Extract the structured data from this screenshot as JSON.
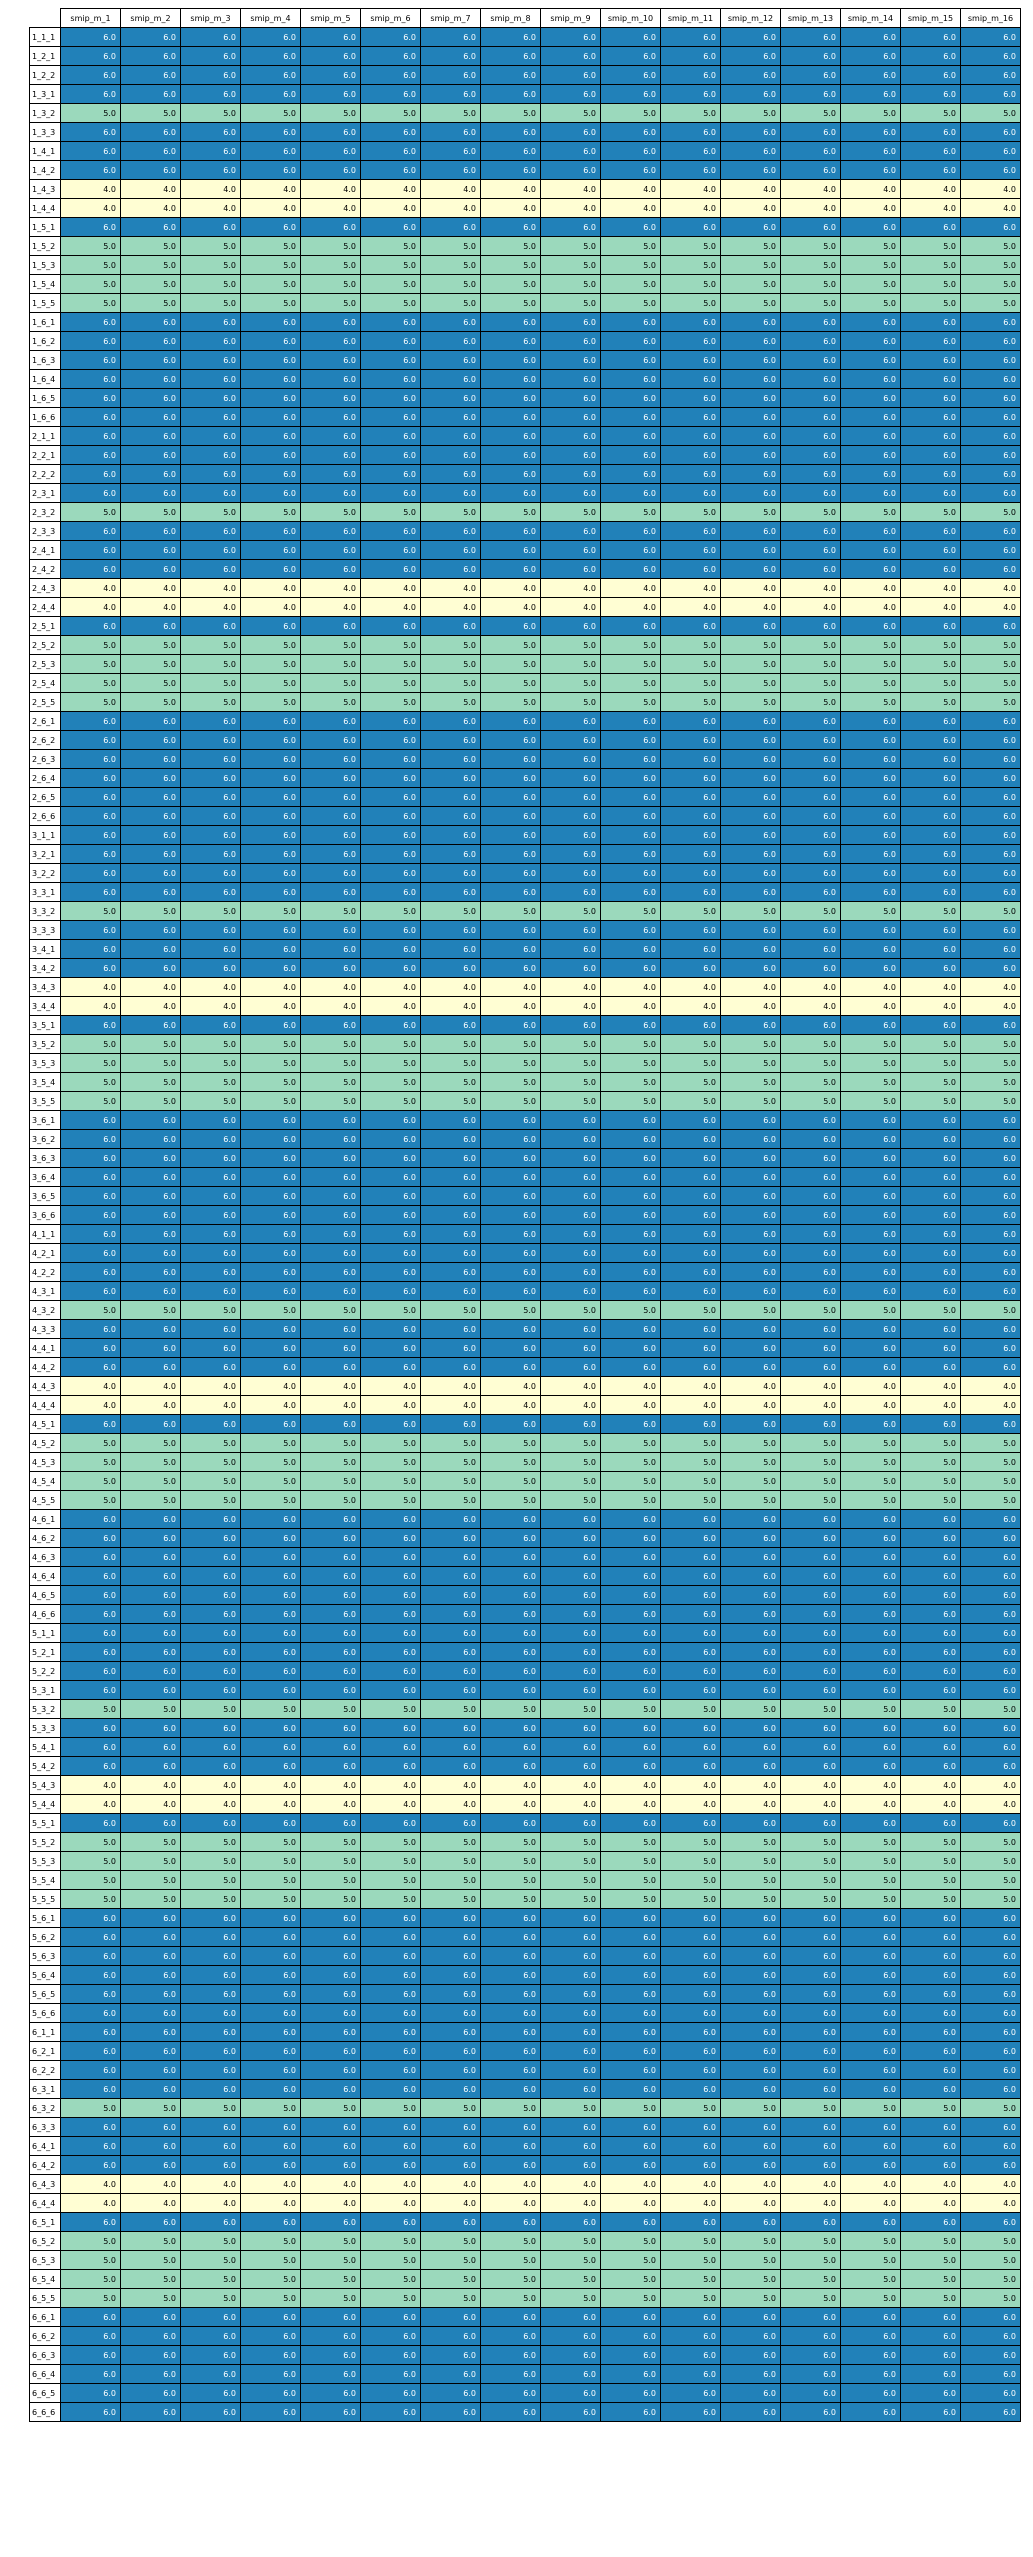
{
  "chart_data": {
    "type": "heatmap",
    "columns": [
      "smip_m_1",
      "smip_m_2",
      "smip_m_3",
      "smip_m_4",
      "smip_m_5",
      "smip_m_6",
      "smip_m_7",
      "smip_m_8",
      "smip_m_9",
      "smip_m_10",
      "smip_m_11",
      "smip_m_12",
      "smip_m_13",
      "smip_m_14",
      "smip_m_15",
      "smip_m_16"
    ],
    "rows": [
      {
        "label": "1_1_1",
        "value": "6.0"
      },
      {
        "label": "1_2_1",
        "value": "6.0"
      },
      {
        "label": "1_2_2",
        "value": "6.0"
      },
      {
        "label": "1_3_1",
        "value": "6.0"
      },
      {
        "label": "1_3_2",
        "value": "5.0"
      },
      {
        "label": "1_3_3",
        "value": "6.0"
      },
      {
        "label": "1_4_1",
        "value": "6.0"
      },
      {
        "label": "1_4_2",
        "value": "6.0"
      },
      {
        "label": "1_4_3",
        "value": "4.0"
      },
      {
        "label": "1_4_4",
        "value": "4.0"
      },
      {
        "label": "1_5_1",
        "value": "6.0"
      },
      {
        "label": "1_5_2",
        "value": "5.0"
      },
      {
        "label": "1_5_3",
        "value": "5.0"
      },
      {
        "label": "1_5_4",
        "value": "5.0"
      },
      {
        "label": "1_5_5",
        "value": "5.0"
      },
      {
        "label": "1_6_1",
        "value": "6.0"
      },
      {
        "label": "1_6_2",
        "value": "6.0"
      },
      {
        "label": "1_6_3",
        "value": "6.0"
      },
      {
        "label": "1_6_4",
        "value": "6.0"
      },
      {
        "label": "1_6_5",
        "value": "6.0"
      },
      {
        "label": "1_6_6",
        "value": "6.0"
      },
      {
        "label": "2_1_1",
        "value": "6.0"
      },
      {
        "label": "2_2_1",
        "value": "6.0"
      },
      {
        "label": "2_2_2",
        "value": "6.0"
      },
      {
        "label": "2_3_1",
        "value": "6.0"
      },
      {
        "label": "2_3_2",
        "value": "5.0"
      },
      {
        "label": "2_3_3",
        "value": "6.0"
      },
      {
        "label": "2_4_1",
        "value": "6.0"
      },
      {
        "label": "2_4_2",
        "value": "6.0"
      },
      {
        "label": "2_4_3",
        "value": "4.0"
      },
      {
        "label": "2_4_4",
        "value": "4.0"
      },
      {
        "label": "2_5_1",
        "value": "6.0"
      },
      {
        "label": "2_5_2",
        "value": "5.0"
      },
      {
        "label": "2_5_3",
        "value": "5.0"
      },
      {
        "label": "2_5_4",
        "value": "5.0"
      },
      {
        "label": "2_5_5",
        "value": "5.0"
      },
      {
        "label": "2_6_1",
        "value": "6.0"
      },
      {
        "label": "2_6_2",
        "value": "6.0"
      },
      {
        "label": "2_6_3",
        "value": "6.0"
      },
      {
        "label": "2_6_4",
        "value": "6.0"
      },
      {
        "label": "2_6_5",
        "value": "6.0"
      },
      {
        "label": "2_6_6",
        "value": "6.0"
      },
      {
        "label": "3_1_1",
        "value": "6.0"
      },
      {
        "label": "3_2_1",
        "value": "6.0"
      },
      {
        "label": "3_2_2",
        "value": "6.0"
      },
      {
        "label": "3_3_1",
        "value": "6.0"
      },
      {
        "label": "3_3_2",
        "value": "5.0"
      },
      {
        "label": "3_3_3",
        "value": "6.0"
      },
      {
        "label": "3_4_1",
        "value": "6.0"
      },
      {
        "label": "3_4_2",
        "value": "6.0"
      },
      {
        "label": "3_4_3",
        "value": "4.0"
      },
      {
        "label": "3_4_4",
        "value": "4.0"
      },
      {
        "label": "3_5_1",
        "value": "6.0"
      },
      {
        "label": "3_5_2",
        "value": "5.0"
      },
      {
        "label": "3_5_3",
        "value": "5.0"
      },
      {
        "label": "3_5_4",
        "value": "5.0"
      },
      {
        "label": "3_5_5",
        "value": "5.0"
      },
      {
        "label": "3_6_1",
        "value": "6.0"
      },
      {
        "label": "3_6_2",
        "value": "6.0"
      },
      {
        "label": "3_6_3",
        "value": "6.0"
      },
      {
        "label": "3_6_4",
        "value": "6.0"
      },
      {
        "label": "3_6_5",
        "value": "6.0"
      },
      {
        "label": "3_6_6",
        "value": "6.0"
      },
      {
        "label": "4_1_1",
        "value": "6.0"
      },
      {
        "label": "4_2_1",
        "value": "6.0"
      },
      {
        "label": "4_2_2",
        "value": "6.0"
      },
      {
        "label": "4_3_1",
        "value": "6.0"
      },
      {
        "label": "4_3_2",
        "value": "5.0"
      },
      {
        "label": "4_3_3",
        "value": "6.0"
      },
      {
        "label": "4_4_1",
        "value": "6.0"
      },
      {
        "label": "4_4_2",
        "value": "6.0"
      },
      {
        "label": "4_4_3",
        "value": "4.0"
      },
      {
        "label": "4_4_4",
        "value": "4.0"
      },
      {
        "label": "4_5_1",
        "value": "6.0"
      },
      {
        "label": "4_5_2",
        "value": "5.0"
      },
      {
        "label": "4_5_3",
        "value": "5.0"
      },
      {
        "label": "4_5_4",
        "value": "5.0"
      },
      {
        "label": "4_5_5",
        "value": "5.0"
      },
      {
        "label": "4_6_1",
        "value": "6.0"
      },
      {
        "label": "4_6_2",
        "value": "6.0"
      },
      {
        "label": "4_6_3",
        "value": "6.0"
      },
      {
        "label": "4_6_4",
        "value": "6.0"
      },
      {
        "label": "4_6_5",
        "value": "6.0"
      },
      {
        "label": "4_6_6",
        "value": "6.0"
      },
      {
        "label": "5_1_1",
        "value": "6.0"
      },
      {
        "label": "5_2_1",
        "value": "6.0"
      },
      {
        "label": "5_2_2",
        "value": "6.0"
      },
      {
        "label": "5_3_1",
        "value": "6.0"
      },
      {
        "label": "5_3_2",
        "value": "5.0"
      },
      {
        "label": "5_3_3",
        "value": "6.0"
      },
      {
        "label": "5_4_1",
        "value": "6.0"
      },
      {
        "label": "5_4_2",
        "value": "6.0"
      },
      {
        "label": "5_4_3",
        "value": "4.0"
      },
      {
        "label": "5_4_4",
        "value": "4.0"
      },
      {
        "label": "5_5_1",
        "value": "6.0"
      },
      {
        "label": "5_5_2",
        "value": "5.0"
      },
      {
        "label": "5_5_3",
        "value": "5.0"
      },
      {
        "label": "5_5_4",
        "value": "5.0"
      },
      {
        "label": "5_5_5",
        "value": "5.0"
      },
      {
        "label": "5_6_1",
        "value": "6.0"
      },
      {
        "label": "5_6_2",
        "value": "6.0"
      },
      {
        "label": "5_6_3",
        "value": "6.0"
      },
      {
        "label": "5_6_4",
        "value": "6.0"
      },
      {
        "label": "5_6_5",
        "value": "6.0"
      },
      {
        "label": "5_6_6",
        "value": "6.0"
      },
      {
        "label": "6_1_1",
        "value": "6.0"
      },
      {
        "label": "6_2_1",
        "value": "6.0"
      },
      {
        "label": "6_2_2",
        "value": "6.0"
      },
      {
        "label": "6_3_1",
        "value": "6.0"
      },
      {
        "label": "6_3_2",
        "value": "5.0"
      },
      {
        "label": "6_3_3",
        "value": "6.0"
      },
      {
        "label": "6_4_1",
        "value": "6.0"
      },
      {
        "label": "6_4_2",
        "value": "6.0"
      },
      {
        "label": "6_4_3",
        "value": "4.0"
      },
      {
        "label": "6_4_4",
        "value": "4.0"
      },
      {
        "label": "6_5_1",
        "value": "6.0"
      },
      {
        "label": "6_5_2",
        "value": "5.0"
      },
      {
        "label": "6_5_3",
        "value": "5.0"
      },
      {
        "label": "6_5_4",
        "value": "5.0"
      },
      {
        "label": "6_5_5",
        "value": "5.0"
      },
      {
        "label": "6_6_1",
        "value": "6.0"
      },
      {
        "label": "6_6_2",
        "value": "6.0"
      },
      {
        "label": "6_6_3",
        "value": "6.0"
      },
      {
        "label": "6_6_4",
        "value": "6.0"
      },
      {
        "label": "6_6_5",
        "value": "6.0"
      },
      {
        "label": "6_6_6",
        "value": "6.0"
      }
    ],
    "colors": {
      "6.0": {
        "background": "#2181b9",
        "text": "#ffffff"
      },
      "5.0": {
        "background": "#9bd9bc",
        "text": "#000000"
      },
      "4.0": {
        "background": "#fffed3",
        "text": "#000000"
      }
    },
    "grid": true
  }
}
